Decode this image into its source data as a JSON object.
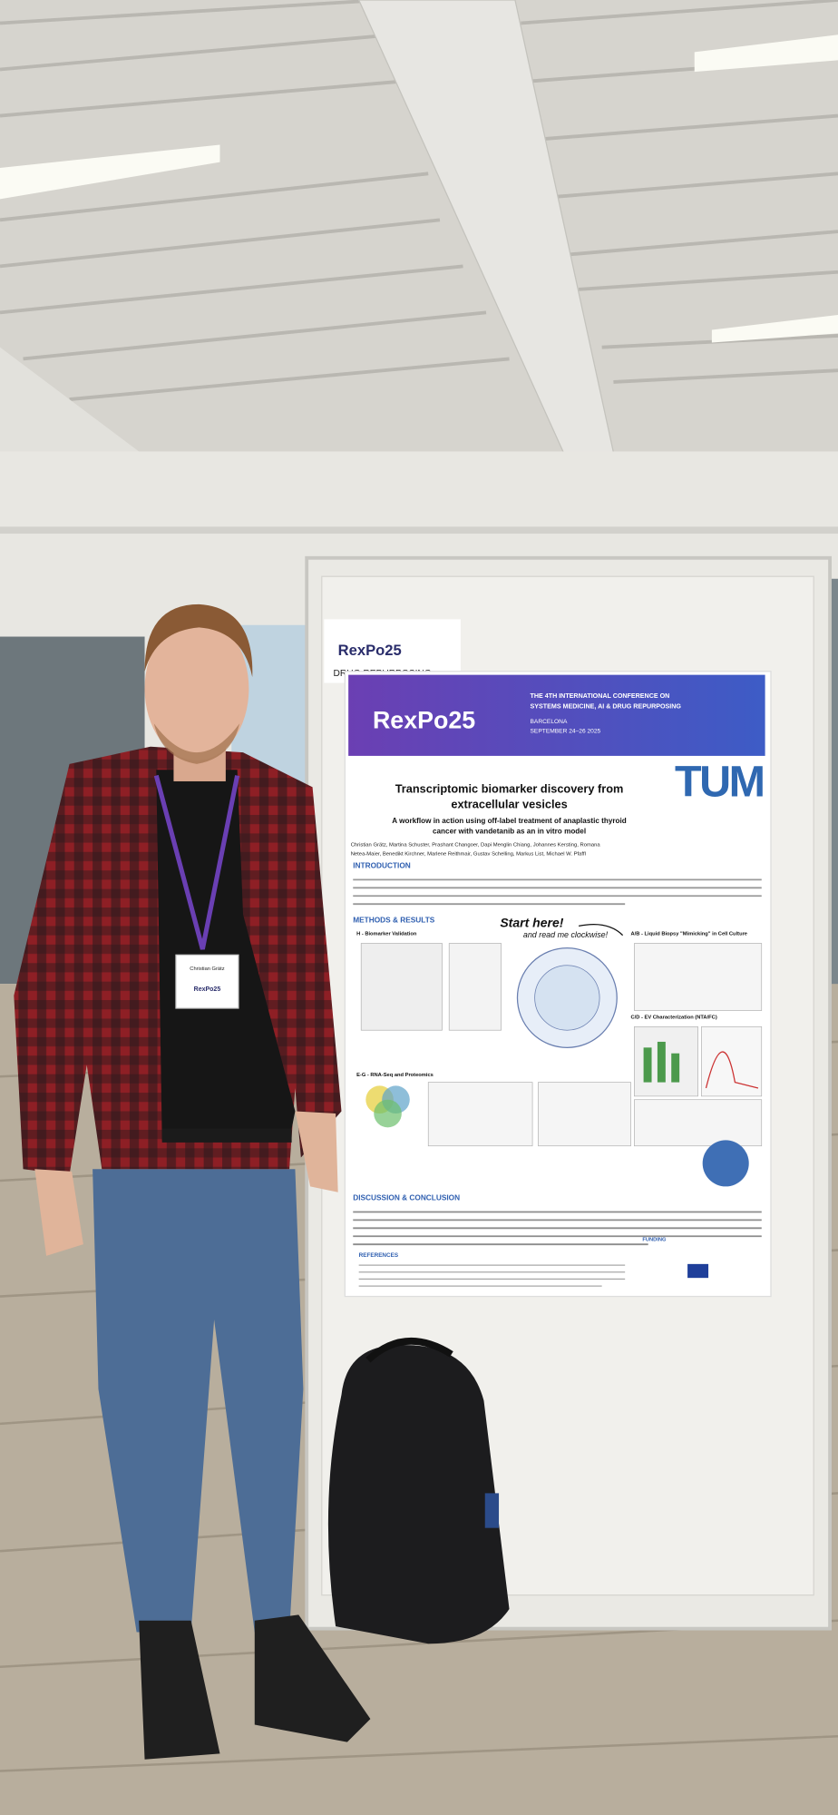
{
  "poster_label": {
    "logo": "RexPo25",
    "category": "DRUG REPURPOSING"
  },
  "poster": {
    "banner": {
      "logo": "RexPo25",
      "conference_lines": [
        "THE 4TH INTERNATIONAL CONFERENCE ON",
        "SYSTEMS MEDICINE, AI & DRUG REPURPOSING"
      ],
      "city": "BARCELONA",
      "dates": "SEPTEMBER 24–26 2025"
    },
    "title_lines": [
      "Transcriptomic biomarker discovery from",
      "extracellular vesicles"
    ],
    "subtitle_lines": [
      "A workflow in action using off-label treatment of anaplastic thyroid",
      "cancer with vandetanib as an in vitro model"
    ],
    "institution_logo": "TUM",
    "author_lines": [
      "Christian Grätz, Martina Schuster, Prashant Changoer, Dapi Menglin Chiang, Johannes Kersting, Romana",
      "Netea-Maier, Benedikt Kirchner, Marlene Reithmair, Gustav Schelling, Markus List, Michael W. Pfaffl"
    ],
    "sections": [
      "INTRODUCTION",
      "METHODS & RESULTS",
      "DISCUSSION & CONCLUSION",
      "REFERENCES",
      "FUNDING"
    ],
    "annotation_lines": [
      "Start here!",
      "and read me clockwise!"
    ],
    "panels": [
      "A/B - Liquid Biopsy \"Mimicking\" in Cell Culture",
      "C/D - EV Characterization (NTA/FC)",
      "H - Biomarker Validation",
      "E-G - RNA-Seq and Proteomics"
    ]
  },
  "badge": {
    "name": "Christian Grätz",
    "logo": "RexPo25"
  }
}
